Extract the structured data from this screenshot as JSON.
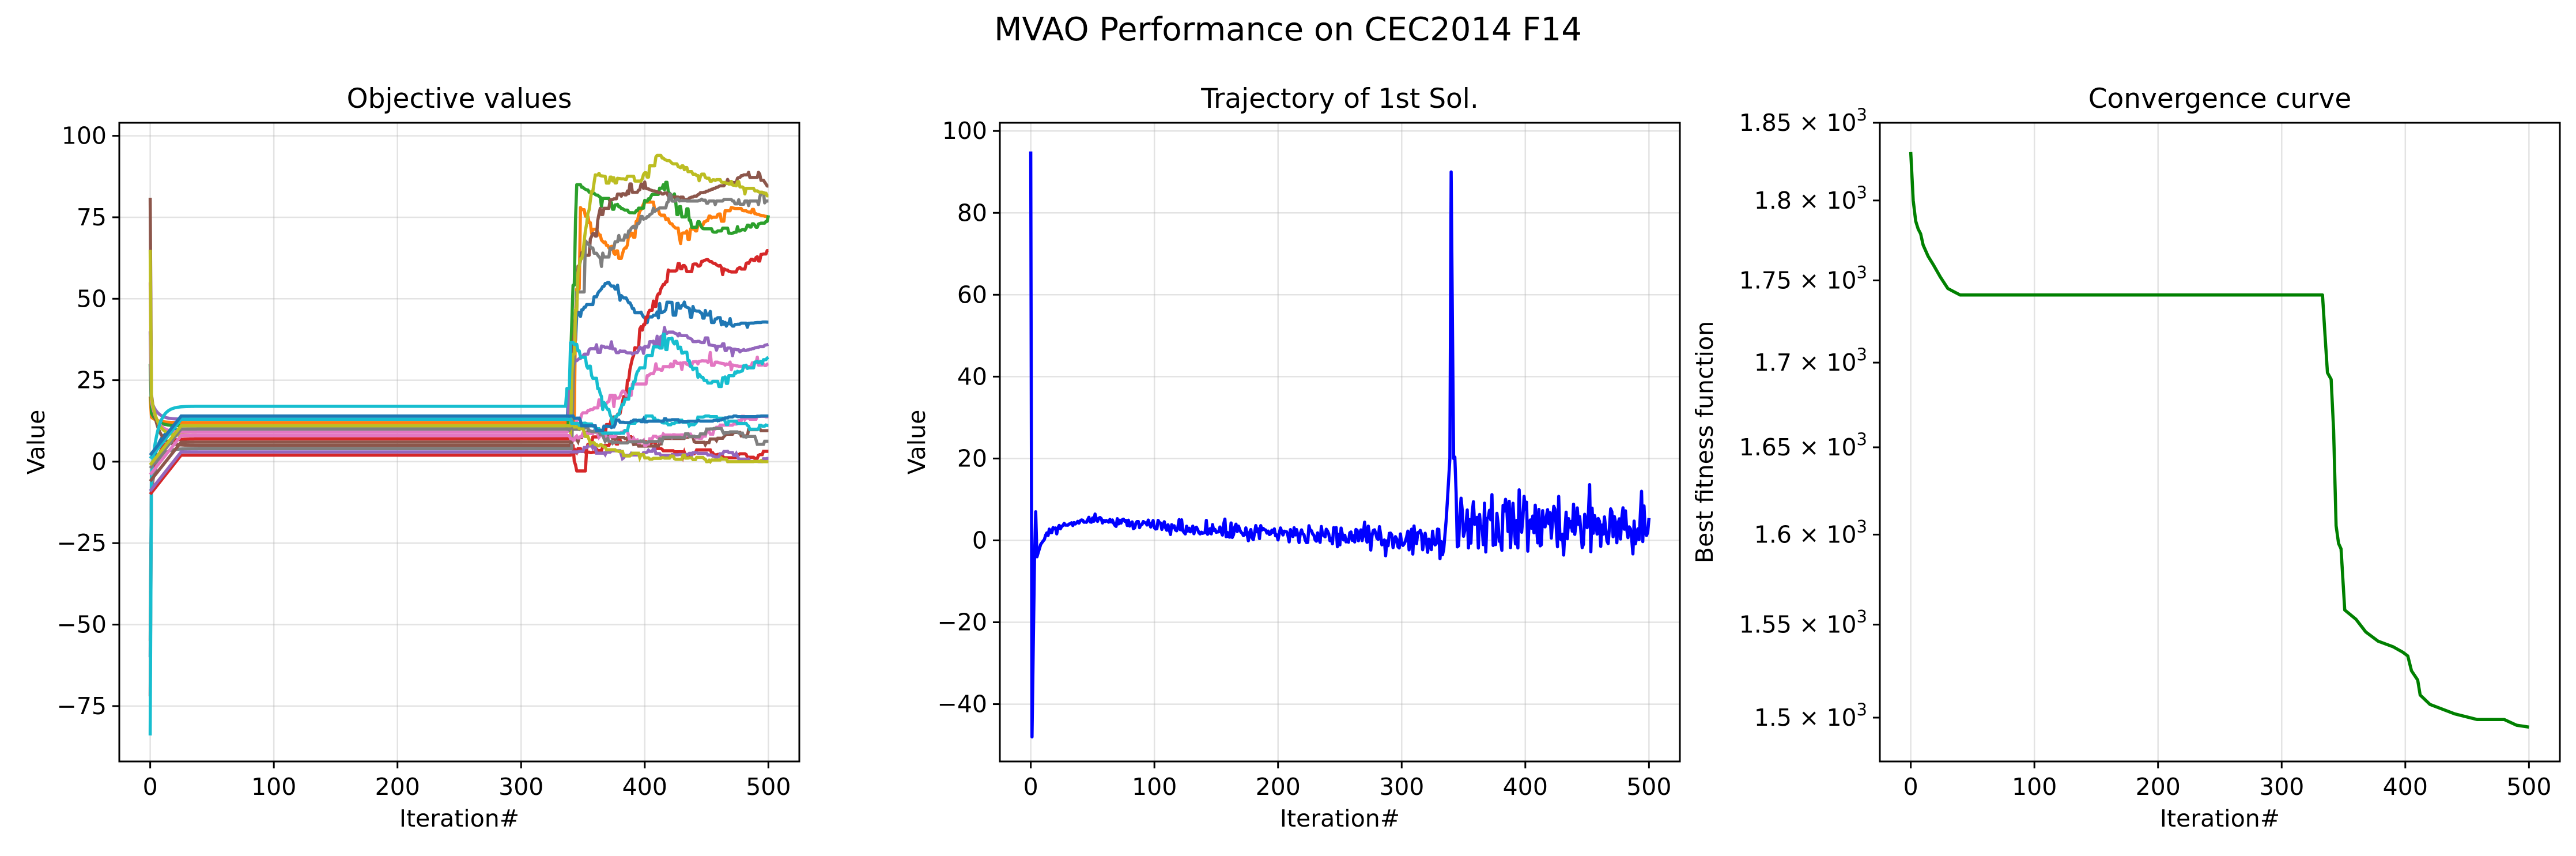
{
  "figure": {
    "title": "MVAO Performance on CEC2014 F14"
  },
  "chart_data": [
    {
      "id": "objective",
      "type": "line",
      "title": "Objective values",
      "xlabel": "Iteration#",
      "ylabel": "Value",
      "xlim": [
        -25,
        525
      ],
      "ylim": [
        -92,
        104
      ],
      "xticks": [
        0,
        100,
        200,
        300,
        400,
        500
      ],
      "yticks": [
        -75,
        -50,
        -25,
        0,
        25,
        50,
        75,
        100
      ],
      "ytick_labels": [
        "−75",
        "−50",
        "−25",
        "0",
        "25",
        "50",
        "75",
        "100"
      ],
      "grid": true,
      "colors": [
        "#1f77b4",
        "#ff7f0e",
        "#2ca02c",
        "#d62728",
        "#9467bd",
        "#8c564b",
        "#e377c2",
        "#7f7f7f",
        "#bcbd22",
        "#17becf"
      ],
      "series": [
        {
          "init": -60,
          "plateau": 10,
          "late": [
            [
              336,
              10
            ],
            [
              345,
              45
            ],
            [
              370,
              55
            ],
            [
              400,
              44
            ],
            [
              430,
              48
            ],
            [
              470,
              42
            ],
            [
              500,
              43
            ]
          ]
        },
        {
          "init": 20,
          "plateau": 12,
          "late": [
            [
              340,
              12
            ],
            [
              348,
              78
            ],
            [
              360,
              70
            ],
            [
              380,
              62
            ],
            [
              400,
              80
            ],
            [
              430,
              70
            ],
            [
              470,
              78
            ],
            [
              500,
              75
            ]
          ]
        },
        {
          "init": 30,
          "plateau": 11,
          "late": [
            [
              338,
              11
            ],
            [
              345,
              85
            ],
            [
              360,
              82
            ],
            [
              390,
              76
            ],
            [
              415,
              85
            ],
            [
              440,
              72
            ],
            [
              470,
              70
            ],
            [
              500,
              74
            ]
          ]
        },
        {
          "init": -72,
          "plateau": 7,
          "late": [
            [
              340,
              7
            ],
            [
              345,
              -3
            ],
            [
              360,
              10
            ],
            [
              380,
              15
            ],
            [
              395,
              40
            ],
            [
              420,
              58
            ],
            [
              450,
              62
            ],
            [
              470,
              58
            ],
            [
              500,
              65
            ]
          ]
        },
        {
          "init": 40,
          "plateau": 13,
          "late": [
            [
              336,
              13
            ],
            [
              342,
              30
            ],
            [
              360,
              36
            ],
            [
              390,
              33
            ],
            [
              420,
              40
            ],
            [
              450,
              36
            ],
            [
              480,
              34
            ],
            [
              500,
              36
            ]
          ]
        },
        {
          "init": 81,
          "plateau": 5,
          "late": [
            [
              338,
              5
            ],
            [
              346,
              60
            ],
            [
              370,
              80
            ],
            [
              400,
              84
            ],
            [
              430,
              80
            ],
            [
              470,
              86
            ],
            [
              490,
              90
            ],
            [
              500,
              84
            ]
          ]
        },
        {
          "init": 55,
          "plateau": 9,
          "late": [
            [
              337,
              9
            ],
            [
              350,
              15
            ],
            [
              380,
              20
            ],
            [
              400,
              26
            ],
            [
              420,
              30
            ],
            [
              450,
              31
            ],
            [
              480,
              29
            ],
            [
              500,
              30
            ]
          ]
        },
        {
          "init": -55,
          "plateau": 4,
          "late": [
            [
              340,
              4
            ],
            [
              347,
              70
            ],
            [
              365,
              62
            ],
            [
              390,
              72
            ],
            [
              420,
              80
            ],
            [
              450,
              80
            ],
            [
              500,
              80
            ]
          ]
        },
        {
          "init": 65,
          "plateau": 8,
          "late": [
            [
              338,
              8
            ],
            [
              346,
              58
            ],
            [
              360,
              88
            ],
            [
              395,
              86
            ],
            [
              410,
              94
            ],
            [
              440,
              88
            ],
            [
              470,
              85
            ],
            [
              500,
              82
            ]
          ]
        },
        {
          "init": -84,
          "plateau": 17,
          "late": [
            [
              336,
              17
            ],
            [
              340,
              38
            ],
            [
              355,
              28
            ],
            [
              375,
              12
            ],
            [
              400,
              32
            ],
            [
              420,
              38
            ],
            [
              450,
              24
            ],
            [
              480,
              28
            ],
            [
              500,
              32
            ]
          ]
        }
      ]
    },
    {
      "id": "trajectory",
      "type": "line",
      "title": "Trajectory of 1st Sol.",
      "xlabel": "Iteration#",
      "ylabel": "Value",
      "xlim": [
        -25,
        525
      ],
      "ylim": [
        -54,
        102
      ],
      "xticks": [
        0,
        100,
        200,
        300,
        400,
        500
      ],
      "yticks": [
        -40,
        -20,
        0,
        20,
        40,
        60,
        80,
        100
      ],
      "ytick_labels": [
        "−40",
        "−20",
        "0",
        "20",
        "40",
        "60",
        "80",
        "100"
      ],
      "grid": true,
      "color": "#0000ff",
      "key_points": [
        [
          0,
          95
        ],
        [
          1,
          -48
        ],
        [
          3,
          -5
        ],
        [
          4,
          7
        ],
        [
          5,
          -4
        ],
        [
          8,
          -1
        ],
        [
          15,
          2
        ],
        [
          30,
          4
        ],
        [
          50,
          5
        ],
        [
          100,
          3.5
        ],
        [
          150,
          2.5
        ],
        [
          200,
          1.5
        ],
        [
          250,
          1
        ],
        [
          300,
          0.5
        ],
        [
          335,
          0
        ],
        [
          337,
          10
        ],
        [
          339,
          20
        ],
        [
          340,
          90
        ],
        [
          342,
          20
        ],
        [
          345,
          5
        ],
        [
          500,
          3
        ]
      ]
    },
    {
      "id": "convergence",
      "type": "line",
      "title": "Convergence curve",
      "xlabel": "Iteration#",
      "ylabel": "Best fitness function",
      "yscale": "log",
      "xlim": [
        -25,
        525
      ],
      "ylim": [
        1477,
        1850
      ],
      "xticks": [
        0,
        100,
        200,
        300,
        400,
        500
      ],
      "yticks": [
        1500,
        1550,
        1600,
        1650,
        1700,
        1750,
        1800,
        1850
      ],
      "ytick_mantissas": [
        "1.5",
        "1.55",
        "1.6",
        "1.65",
        "1.7",
        "1.75",
        "1.8",
        "1.85"
      ],
      "ytick_base": "10",
      "ytick_exp": "3",
      "grid": "x-only",
      "color": "#008000",
      "points": [
        [
          0,
          1831
        ],
        [
          2,
          1800
        ],
        [
          4,
          1787
        ],
        [
          6,
          1782
        ],
        [
          8,
          1779
        ],
        [
          10,
          1772
        ],
        [
          14,
          1765
        ],
        [
          18,
          1760
        ],
        [
          24,
          1752
        ],
        [
          30,
          1745
        ],
        [
          35,
          1743
        ],
        [
          40,
          1741
        ],
        [
          333,
          1741
        ],
        [
          335,
          1717
        ],
        [
          337,
          1694
        ],
        [
          340,
          1690
        ],
        [
          342,
          1660
        ],
        [
          344,
          1605
        ],
        [
          346,
          1595
        ],
        [
          348,
          1592
        ],
        [
          351,
          1558
        ],
        [
          360,
          1553
        ],
        [
          368,
          1546
        ],
        [
          378,
          1541
        ],
        [
          390,
          1538
        ],
        [
          398,
          1535
        ],
        [
          402,
          1533
        ],
        [
          405,
          1525
        ],
        [
          410,
          1520
        ],
        [
          412,
          1512
        ],
        [
          420,
          1507
        ],
        [
          432,
          1504
        ],
        [
          440,
          1502
        ],
        [
          458,
          1499
        ],
        [
          480,
          1499
        ],
        [
          490,
          1496
        ],
        [
          500,
          1495
        ]
      ]
    }
  ]
}
